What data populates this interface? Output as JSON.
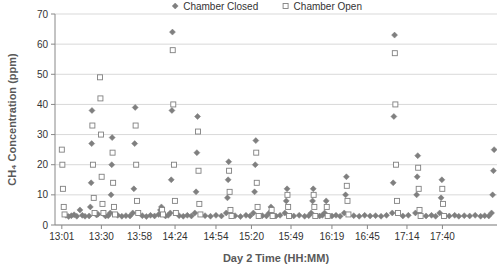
{
  "chart_data": {
    "type": "scatter",
    "x_label": "Day 2 Time (HH:MM)",
    "y_label": "CH₄ Concentration (ppm)",
    "xlim": [
      776,
      1100
    ],
    "ylim": [
      0,
      70
    ],
    "xticks": [
      {
        "value": 781,
        "label": "13:01"
      },
      {
        "value": 810,
        "label": "13:30"
      },
      {
        "value": 838,
        "label": "13:58"
      },
      {
        "value": 864,
        "label": "14:24"
      },
      {
        "value": 894,
        "label": "14:54"
      },
      {
        "value": 920,
        "label": "15:20"
      },
      {
        "value": 949,
        "label": "15:49"
      },
      {
        "value": 979,
        "label": "16:19"
      },
      {
        "value": 1005,
        "label": "16:45"
      },
      {
        "value": 1034,
        "label": "17:14"
      },
      {
        "value": 1060,
        "label": "17:40"
      }
    ],
    "yticks": [
      0,
      10,
      20,
      30,
      40,
      50,
      60,
      70
    ],
    "grid": true,
    "legend": "top",
    "series": [
      {
        "name": "Chamber Closed",
        "color": "#7f7f7f",
        "marker": "diamond",
        "x": [
          784,
          786,
          788,
          790,
          792,
          794.3,
          796,
          798,
          801,
          801.9,
          802.5,
          802.9,
          803.1,
          806.5,
          807.5,
          813,
          815,
          816.5,
          817.1,
          817.6,
          817.9,
          822,
          825,
          828,
          831,
          833,
          833.8,
          834.4,
          834.8,
          840,
          843,
          846,
          849,
          852,
          853.3,
          854,
          857,
          859,
          860.5,
          861.2,
          861.7,
          862.1,
          867,
          870,
          873,
          876,
          878.5,
          879.4,
          880,
          880.5,
          886,
          890,
          894,
          898,
          901.5,
          902.4,
          902.9,
          903.3,
          908,
          912,
          916,
          919,
          921.4,
          922.3,
          922.8,
          923.2,
          928,
          931,
          933,
          934.3,
          938,
          941,
          944.5,
          945.5,
          946.1,
          951,
          955,
          959,
          962,
          963.8,
          964.8,
          965.3,
          970,
          972,
          973.6,
          974.8,
          979,
          982,
          985,
          988,
          989,
          989.6,
          995,
          999,
          1003,
          1007,
          1011,
          1015,
          1019,
          1023.2,
          1023.9,
          1024.4,
          1024.9,
          1031,
          1035,
          1040.2,
          1041.1,
          1041.5,
          1041.9,
          1048,
          1052,
          1055,
          1058,
          1059,
          1059.6,
          1065,
          1069,
          1072,
          1076,
          1080,
          1084,
          1088,
          1091,
          1094,
          1096,
          1096.8,
          1097.4,
          1097.9
        ],
        "values": [
          3.2,
          2.8,
          3.1,
          3.4,
          2.9,
          5,
          3.2,
          2.9,
          3,
          6,
          14,
          27,
          38,
          3.3,
          3.6,
          3,
          3.1,
          4,
          10,
          20,
          29,
          3.2,
          2.9,
          3.1,
          3,
          4,
          12,
          27,
          39,
          3.1,
          2.8,
          3.2,
          3,
          3.5,
          5,
          6,
          3,
          3.2,
          4,
          15,
          38,
          64,
          3.1,
          2.9,
          3.2,
          3,
          4,
          11,
          24,
          36,
          3.1,
          2.9,
          3.2,
          3,
          4,
          9,
          15,
          21,
          3.1,
          2.8,
          3.2,
          3,
          4,
          11,
          20,
          28,
          3.1,
          3,
          4,
          6,
          3,
          3.2,
          4,
          8,
          12,
          3,
          3.2,
          2.9,
          3.1,
          4,
          8,
          12,
          3,
          3.2,
          4,
          8,
          3,
          3.2,
          2.9,
          4,
          10,
          16,
          3.1,
          2.9,
          3.2,
          3,
          3.1,
          2.9,
          3.2,
          4,
          14,
          36,
          63,
          3,
          3.2,
          4,
          10,
          16,
          23,
          3,
          3.2,
          2.9,
          4,
          9,
          15,
          3,
          3.2,
          2.9,
          3.1,
          3,
          3.2,
          2.9,
          3.1,
          3,
          4,
          10,
          18,
          25
        ]
      },
      {
        "name": "Chamber Open",
        "color": "#808080",
        "marker": "open-square",
        "x": [
          781,
          781.4,
          781.8,
          782.4,
          783,
          803.4,
          803.8,
          804.4,
          805,
          809,
          809.3,
          809.7,
          810.2,
          810.8,
          811.5,
          818.2,
          818.6,
          819.2,
          820,
          835.1,
          835.5,
          836.1,
          837,
          854.5,
          855.2,
          862.3,
          862.7,
          863.2,
          863.9,
          864.6,
          880.8,
          881.2,
          881.8,
          882.6,
          903.6,
          904,
          904.6,
          905.4,
          923.5,
          923.9,
          924.5,
          925.3,
          934.8,
          935.5,
          946.4,
          946.9,
          947.6,
          965.6,
          966.1,
          966.8,
          975.2,
          975.9,
          989.9,
          990.4,
          991.1,
          1025.1,
          1025.5,
          1026,
          1026.7,
          1027.4,
          1042.2,
          1042.6,
          1043.2,
          1044,
          1059.9,
          1060.4,
          1061.1
        ],
        "values": [
          25,
          20,
          12,
          6,
          3.5,
          33,
          20,
          9,
          4,
          49,
          42,
          30,
          16,
          7,
          4,
          24,
          14,
          6,
          3.5,
          33,
          20,
          8,
          4,
          5,
          3.5,
          58,
          40,
          20,
          8,
          4,
          31,
          18,
          7,
          3.5,
          18,
          11,
          5,
          3,
          24,
          14,
          6,
          3,
          5,
          3,
          10,
          6,
          3,
          10,
          6,
          3,
          6,
          3,
          13,
          8,
          3.5,
          57,
          40,
          20,
          8,
          4,
          19,
          12,
          5,
          3,
          12,
          7,
          3
        ]
      }
    ]
  }
}
